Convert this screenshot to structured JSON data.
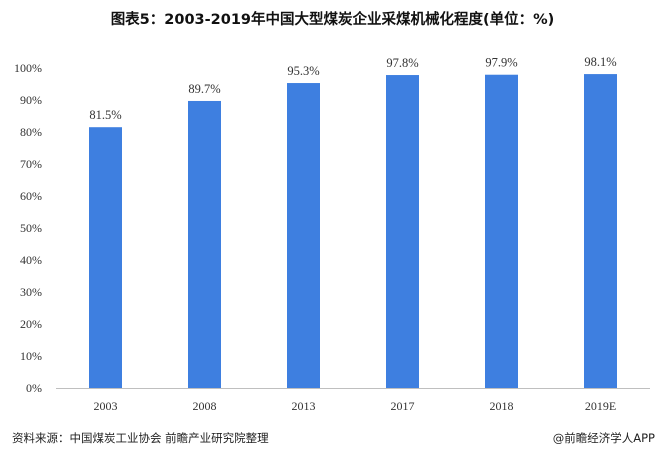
{
  "chart_data": {
    "type": "bar",
    "title": "图表5：2003-2019年中国大型煤炭企业采煤机械化程度(单位：%)",
    "categories": [
      "2003",
      "2008",
      "2013",
      "2017",
      "2018",
      "2019E"
    ],
    "values": [
      81.5,
      89.7,
      95.3,
      97.8,
      97.9,
      98.1
    ],
    "data_labels": [
      "81.5%",
      "89.7%",
      "95.3%",
      "97.8%",
      "97.9%",
      "98.1%"
    ],
    "y_ticks": [
      "0%",
      "10%",
      "20%",
      "30%",
      "40%",
      "50%",
      "60%",
      "70%",
      "80%",
      "90%",
      "100%"
    ],
    "ylim": [
      0,
      100
    ],
    "xlabel": "",
    "ylabel": "",
    "grid": false,
    "bar_color": "#3e7fe0"
  },
  "footer": {
    "source": "资料来源：中国煤炭工业协会 前瞻产业研究院整理",
    "credit": "@前瞻经济学人APP"
  }
}
